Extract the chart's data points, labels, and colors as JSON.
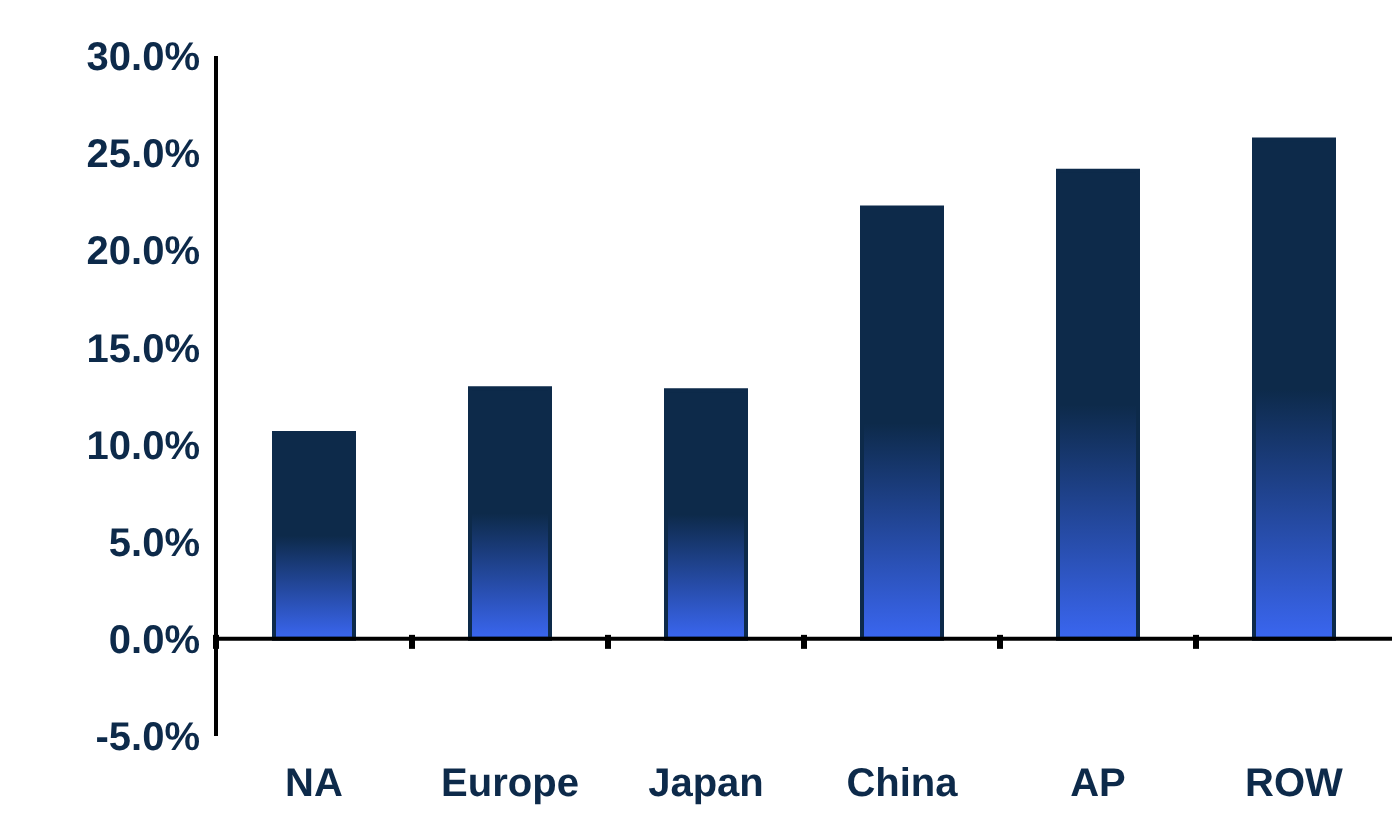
{
  "chart_data": {
    "type": "bar",
    "categories": [
      "NA",
      "Europe",
      "Japan",
      "China",
      "AP",
      "ROW"
    ],
    "values": [
      10.6,
      12.9,
      12.8,
      22.2,
      24.1,
      25.7
    ],
    "color": "#0d2a4a",
    "ylim": [
      -5,
      30
    ],
    "yticks": [
      {
        "value": -5,
        "label": "-5.0%"
      },
      {
        "value": 0,
        "label": "0.0%"
      },
      {
        "value": 5,
        "label": "5.0%"
      },
      {
        "value": 10,
        "label": "10.0%"
      },
      {
        "value": 15,
        "label": "15.0%"
      },
      {
        "value": 20,
        "label": "20.0%"
      },
      {
        "value": 25,
        "label": "25.0%"
      },
      {
        "value": 30,
        "label": "30.0%"
      }
    ],
    "ref_lines": [
      {
        "axis": "y",
        "value": 0,
        "color": "#000000"
      }
    ],
    "grid": false,
    "legend": false
  }
}
